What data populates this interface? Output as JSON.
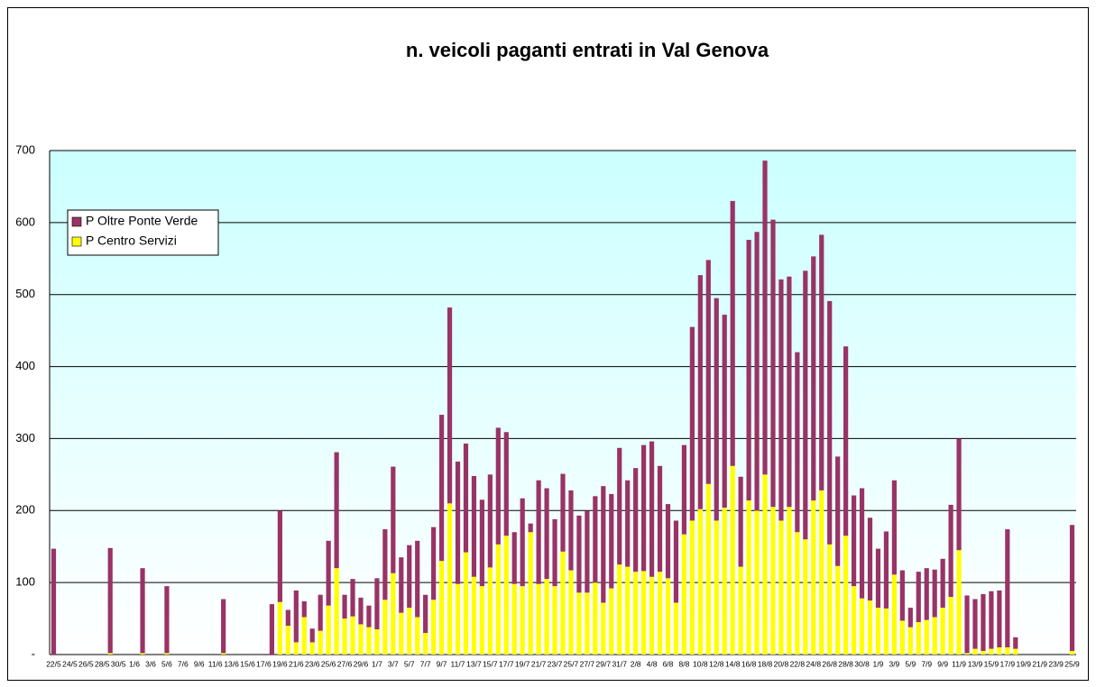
{
  "chart_data": {
    "type": "stacked_bar",
    "title": "n. veicoli paganti entrati in Val Genova",
    "categories": [
      "22/5",
      null,
      "24/5",
      null,
      "26/5",
      null,
      "28/5",
      null,
      "30/5",
      null,
      "1/6",
      null,
      "3/6",
      null,
      "5/6",
      null,
      "7/6",
      null,
      "9/6",
      null,
      "11/6",
      null,
      "13/6",
      null,
      "15/6",
      null,
      "17/6",
      null,
      "19/6",
      null,
      "21/6",
      null,
      "23/6",
      null,
      "25/6",
      null,
      "27/6",
      null,
      "29/6",
      null,
      "1/7",
      null,
      "3/7",
      null,
      "5/7",
      null,
      "7/7",
      null,
      "9/7",
      null,
      "11/7",
      null,
      "13/7",
      null,
      "15/7",
      null,
      "17/7",
      null,
      "19/7",
      null,
      "21/7",
      null,
      "23/7",
      null,
      "25/7",
      null,
      "27/7",
      null,
      "29/7",
      null,
      "31/7",
      null,
      "2/8",
      null,
      "4/8",
      null,
      "6/8",
      null,
      "8/8",
      null,
      "10/8",
      null,
      "12/8",
      null,
      "14/8",
      null,
      "16/8",
      null,
      "18/8",
      null,
      "20/8",
      null,
      "22/8",
      null,
      "24/8",
      null,
      "26/8",
      null,
      "28/8",
      null,
      "30/8",
      null,
      "1/9",
      null,
      "3/9",
      null,
      "5/9",
      null,
      "7/9",
      null,
      "9/9",
      null,
      "11/9",
      null,
      "13/9",
      null,
      "15/9",
      null,
      "17/9",
      null,
      "19/9",
      null,
      "21/9",
      null,
      "23/9",
      null,
      "25/9"
    ],
    "series": [
      {
        "name": "P Oltre Ponte Verde",
        "color": "#993366",
        "values": [
          147,
          null,
          null,
          null,
          null,
          null,
          null,
          146,
          null,
          null,
          null,
          118,
          null,
          null,
          93,
          null,
          null,
          null,
          null,
          null,
          null,
          75,
          null,
          null,
          null,
          null,
          null,
          70,
          127,
          22,
          72,
          22,
          19,
          50,
          90,
          161,
          33,
          52,
          37,
          30,
          71,
          98,
          148,
          77,
          87,
          106,
          53,
          101,
          203,
          272,
          170,
          151,
          140,
          120,
          129,
          162,
          144,
          72,
          122,
          12,
          144,
          126,
          93,
          108,
          111,
          107,
          114,
          120,
          162,
          131,
          162,
          120,
          144,
          175,
          188,
          147,
          103,
          114,
          124,
          269,
          325,
          311,
          309,
          268,
          368,
          125,
          362,
          387,
          436,
          399,
          335,
          320,
          250,
          373,
          339,
          355,
          338,
          152,
          263,
          126,
          153,
          115,
          82,
          107,
          131,
          70,
          27,
          70,
          72,
          66,
          68,
          128,
          155,
          80,
          69,
          79,
          80,
          79,
          164,
          16,
          null,
          null,
          null,
          null,
          null,
          null,
          175
        ]
      },
      {
        "name": "P Centro Servizi",
        "color": "#ffff00",
        "values": [
          0,
          null,
          null,
          null,
          null,
          null,
          null,
          2,
          null,
          null,
          null,
          2,
          null,
          null,
          2,
          null,
          null,
          null,
          null,
          null,
          null,
          2,
          null,
          null,
          null,
          null,
          null,
          0,
          73,
          40,
          17,
          52,
          17,
          33,
          68,
          120,
          50,
          53,
          42,
          38,
          35,
          76,
          113,
          58,
          65,
          52,
          30,
          76,
          130,
          210,
          98,
          142,
          108,
          95,
          121,
          153,
          165,
          98,
          95,
          170,
          98,
          105,
          95,
          143,
          117,
          86,
          86,
          100,
          72,
          92,
          125,
          122,
          115,
          116,
          108,
          115,
          106,
          72,
          167,
          186,
          202,
          237,
          186,
          204,
          262,
          122,
          214,
          200,
          250,
          205,
          186,
          205,
          170,
          160,
          214,
          228,
          153,
          123,
          165,
          95,
          78,
          75,
          65,
          64,
          111,
          47,
          38,
          45,
          48,
          52,
          65,
          80,
          145,
          2,
          8,
          5,
          8,
          10,
          10,
          8,
          null,
          null,
          null,
          null,
          null,
          null,
          5
        ]
      }
    ],
    "ylim": [
      0,
      700
    ],
    "yticks": [
      {
        "value": 0,
        "label": "-"
      },
      100,
      200,
      300,
      400,
      500,
      600,
      700
    ],
    "grid": true,
    "legend": "left"
  }
}
